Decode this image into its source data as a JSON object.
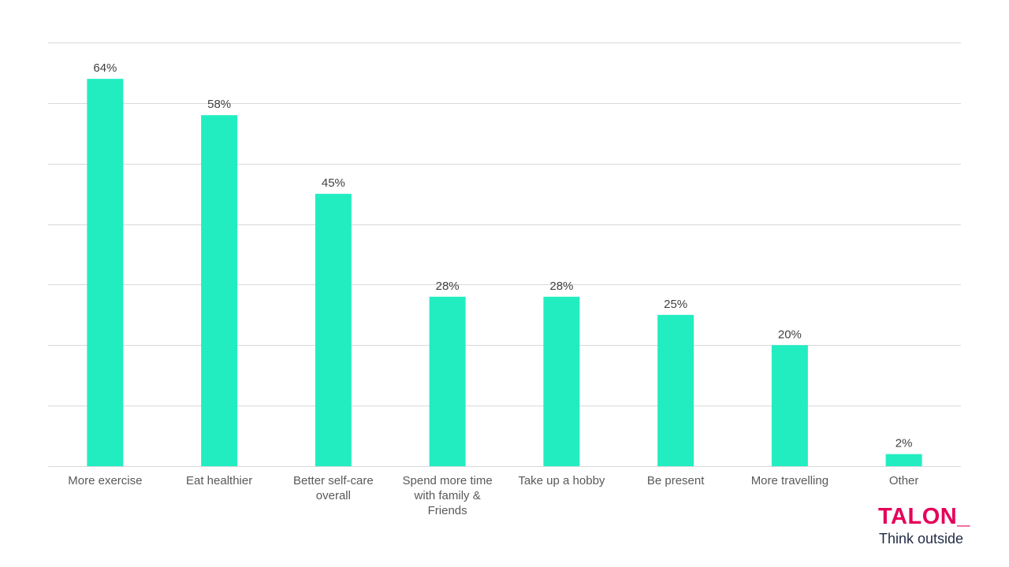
{
  "chart_data": {
    "type": "bar",
    "categories": [
      [
        "More exercise"
      ],
      [
        "Eat healthier"
      ],
      [
        "Better self-care",
        "overall"
      ],
      [
        "Spend more time",
        "with family &",
        "Friends"
      ],
      [
        "Take up a hobby"
      ],
      [
        "Be present"
      ],
      [
        "More travelling"
      ],
      [
        "Other"
      ]
    ],
    "values": [
      64,
      58,
      45,
      28,
      28,
      25,
      20,
      2
    ],
    "value_labels": [
      "64%",
      "58%",
      "45%",
      "28%",
      "28%",
      "25%",
      "20%",
      "2%"
    ],
    "ylim": [
      0,
      70
    ],
    "grid": true,
    "title": "",
    "xlabel": "",
    "ylabel": ""
  },
  "colors": {
    "bar": "#22EDC1",
    "grid": "#D9D9D9",
    "label_text": "#595959",
    "value_text": "#404040",
    "brand_name": "#E5005A",
    "brand_tagline": "#1F2A44"
  },
  "brand": {
    "name": "TALON_",
    "tagline": "Think outside"
  }
}
